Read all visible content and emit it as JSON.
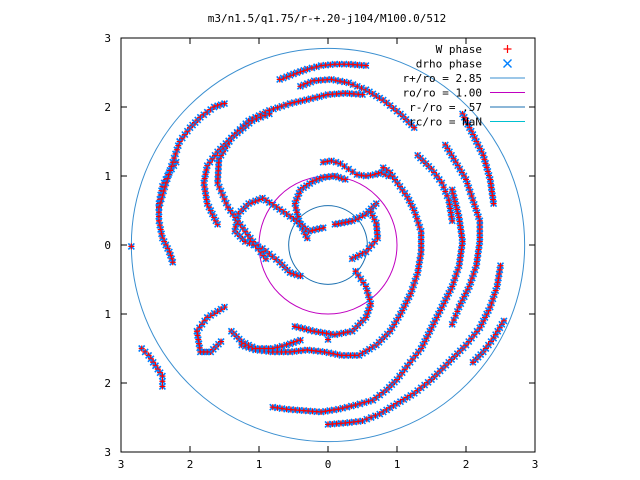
{
  "chart_data": {
    "type": "scatter",
    "title": "m3/n1.5/q1.75/r-+.20-j104/M100.0/512",
    "xlabel": "",
    "ylabel": "",
    "xlim": [
      -3,
      3
    ],
    "ylim": [
      -3,
      3
    ],
    "x_ticks": [
      "3",
      "2",
      "1",
      "0",
      "1",
      "2",
      "3"
    ],
    "y_ticks": [
      "3",
      "2",
      "1",
      "0",
      "1",
      "2",
      "3"
    ],
    "x_tick_values": [
      -3,
      -2,
      -1,
      0,
      1,
      2,
      3
    ],
    "y_tick_values": [
      3,
      2,
      1,
      0,
      -1,
      -2,
      -3
    ],
    "grid": false,
    "legend_position": "top-right",
    "colors": {
      "w_phase": "#ff0000",
      "drho_phase": "#0080ff",
      "circle_r_plus": "#3a8fd0",
      "circle_ro": "#c000c0",
      "circle_r_minus": "#1a6fb0",
      "circle_rc": "#00c0d0"
    },
    "legend": [
      {
        "label": "W phase",
        "marker": "plus",
        "color": "#ff0000"
      },
      {
        "label": "drho phase",
        "marker": "cross",
        "color": "#0080ff"
      },
      {
        "label": "r+/ro = 2.85",
        "marker": "line",
        "color": "#3a8fd0"
      },
      {
        "label": "ro/ro = 1.00",
        "marker": "line",
        "color": "#c000c0"
      },
      {
        "label": "r-/ro = .57",
        "marker": "line",
        "color": "#1a6fb0"
      },
      {
        "label": "rc/ro = NaN",
        "marker": "line",
        "color": "#00c0d0"
      }
    ],
    "circles": [
      {
        "name": "r+/ro",
        "radius": 2.85
      },
      {
        "name": "ro/ro",
        "radius": 1.0
      },
      {
        "name": "r-/ro",
        "radius": 0.57
      }
    ],
    "series": [
      {
        "name": "W phase",
        "marker": "plus",
        "arms": [
          {
            "points": [
              [
                -0.07,
                1.2
              ],
              [
                0.05,
                1.22
              ],
              [
                0.18,
                1.18
              ],
              [
                0.3,
                1.1
              ],
              [
                0.42,
                1.02
              ],
              [
                0.55,
                1.0
              ],
              [
                0.68,
                1.02
              ],
              [
                0.78,
                1.05
              ],
              [
                0.88,
                1.0
              ]
            ]
          },
          {
            "points": [
              [
                -0.3,
                0.1
              ],
              [
                -0.42,
                0.35
              ],
              [
                -0.48,
                0.6
              ],
              [
                -0.4,
                0.8
              ],
              [
                -0.22,
                0.92
              ],
              [
                -0.07,
                0.98
              ],
              [
                0.1,
                1.0
              ],
              [
                0.25,
                0.95
              ]
            ]
          },
          {
            "points": [
              [
                -0.07,
                0.25
              ],
              [
                -0.28,
                0.2
              ],
              [
                -0.5,
                0.38
              ],
              [
                -0.75,
                0.55
              ],
              [
                -0.95,
                0.68
              ],
              [
                -1.15,
                0.6
              ],
              [
                -1.3,
                0.45
              ],
              [
                -1.35,
                0.2
              ],
              [
                -1.2,
                0.05
              ],
              [
                -0.95,
                -0.05
              ],
              [
                -0.7,
                -0.25
              ],
              [
                -0.55,
                -0.4
              ],
              [
                -0.4,
                -0.45
              ]
            ]
          },
          {
            "points": [
              [
                0.7,
                0.6
              ],
              [
                0.55,
                0.45
              ],
              [
                0.35,
                0.35
              ],
              [
                0.2,
                0.32
              ],
              [
                0.1,
                0.3
              ]
            ]
          },
          {
            "points": [
              [
                0.35,
                -0.2
              ],
              [
                0.55,
                -0.1
              ],
              [
                0.72,
                0.1
              ],
              [
                0.7,
                0.32
              ],
              [
                0.62,
                0.48
              ]
            ]
          },
          {
            "points": [
              [
                -0.48,
                -1.18
              ],
              [
                -0.2,
                -1.25
              ],
              [
                0.1,
                -1.3
              ],
              [
                0.35,
                -1.25
              ],
              [
                0.55,
                -1.05
              ],
              [
                0.62,
                -0.85
              ],
              [
                0.55,
                -0.6
              ],
              [
                0.4,
                -0.38
              ]
            ]
          },
          {
            "points": [
              [
                -0.9,
                -0.2
              ],
              [
                -1.2,
                0.2
              ],
              [
                -1.45,
                0.55
              ],
              [
                -1.6,
                0.9
              ],
              [
                -1.58,
                1.25
              ],
              [
                -1.4,
                1.55
              ],
              [
                -1.15,
                1.8
              ],
              [
                -0.85,
                1.95
              ],
              [
                -0.55,
                2.05
              ],
              [
                -0.25,
                2.12
              ],
              [
                0.0,
                2.18
              ],
              [
                0.25,
                2.2
              ],
              [
                0.5,
                2.18
              ]
            ]
          },
          {
            "points": [
              [
                -1.25,
                -1.45
              ],
              [
                -1.05,
                -1.52
              ],
              [
                -0.8,
                -1.55
              ],
              [
                -0.55,
                -1.55
              ],
              [
                -0.3,
                -1.52
              ],
              [
                -0.05,
                -1.55
              ],
              [
                0.2,
                -1.6
              ],
              [
                0.45,
                -1.6
              ],
              [
                0.7,
                -1.45
              ],
              [
                0.9,
                -1.25
              ],
              [
                1.05,
                -1.0
              ],
              [
                1.2,
                -0.7
              ],
              [
                1.3,
                -0.4
              ],
              [
                1.35,
                -0.1
              ],
              [
                1.35,
                0.2
              ],
              [
                1.25,
                0.5
              ],
              [
                1.15,
                0.7
              ],
              [
                0.9,
                1.05
              ],
              [
                0.8,
                1.12
              ]
            ]
          },
          {
            "points": [
              [
                -1.5,
                -0.9
              ],
              [
                -1.75,
                -1.05
              ],
              [
                -1.9,
                -1.25
              ],
              [
                -1.85,
                -1.55
              ],
              [
                -1.7,
                -1.55
              ],
              [
                -1.55,
                -1.4
              ]
            ]
          },
          {
            "points": [
              [
                -1.6,
                0.3
              ],
              [
                -1.75,
                0.6
              ],
              [
                -1.8,
                0.9
              ],
              [
                -1.75,
                1.15
              ],
              [
                -1.6,
                1.35
              ],
              [
                -1.4,
                1.55
              ],
              [
                -1.1,
                1.8
              ],
              [
                -0.85,
                1.9
              ]
            ]
          },
          {
            "points": [
              [
                -2.2,
                1.2
              ],
              [
                -2.3,
                1.05
              ],
              [
                -2.4,
                0.85
              ],
              [
                -2.45,
                0.6
              ],
              [
                -2.45,
                0.35
              ],
              [
                -2.4,
                0.1
              ],
              [
                -2.3,
                -0.1
              ],
              [
                -2.25,
                -0.25
              ]
            ]
          },
          {
            "points": [
              [
                -2.45,
                0.55
              ],
              [
                -2.35,
                0.9
              ],
              [
                -2.25,
                1.2
              ],
              [
                -2.15,
                1.5
              ],
              [
                -2.0,
                1.7
              ],
              [
                -1.85,
                1.85
              ],
              [
                -1.65,
                2.0
              ],
              [
                -1.5,
                2.05
              ]
            ]
          },
          {
            "points": [
              [
                -2.85,
                -0.02
              ]
            ]
          },
          {
            "points": [
              [
                -2.7,
                -1.5
              ],
              [
                -2.6,
                -1.6
              ],
              [
                -2.5,
                -1.75
              ],
              [
                -2.4,
                -1.9
              ],
              [
                -2.4,
                -2.05
              ]
            ]
          },
          {
            "points": [
              [
                -1.4,
                -1.25
              ],
              [
                -1.25,
                -1.4
              ],
              [
                -1.05,
                -1.5
              ],
              [
                -0.8,
                -1.5
              ],
              [
                -0.6,
                -1.45
              ],
              [
                -0.4,
                -1.38
              ]
            ]
          },
          {
            "points": [
              [
                -0.8,
                -2.35
              ],
              [
                -0.6,
                -2.38
              ],
              [
                -0.35,
                -2.4
              ],
              [
                -0.1,
                -2.42
              ],
              [
                0.15,
                -2.38
              ],
              [
                0.4,
                -2.32
              ],
              [
                0.65,
                -2.25
              ],
              [
                0.85,
                -2.1
              ],
              [
                1.0,
                -1.95
              ],
              [
                1.15,
                -1.75
              ],
              [
                1.35,
                -1.5
              ],
              [
                1.5,
                -1.2
              ],
              [
                1.65,
                -0.9
              ],
              [
                1.8,
                -0.6
              ],
              [
                1.9,
                -0.3
              ],
              [
                1.95,
                0.05
              ],
              [
                1.9,
                0.4
              ],
              [
                1.8,
                0.8
              ]
            ]
          },
          {
            "points": [
              [
                0.0,
                -2.6
              ],
              [
                0.25,
                -2.58
              ],
              [
                0.5,
                -2.55
              ],
              [
                0.75,
                -2.45
              ],
              [
                1.0,
                -2.3
              ],
              [
                1.25,
                -2.15
              ],
              [
                1.5,
                -1.95
              ],
              [
                1.75,
                -1.7
              ],
              [
                2.0,
                -1.45
              ],
              [
                2.2,
                -1.2
              ],
              [
                2.35,
                -0.9
              ],
              [
                2.45,
                -0.6
              ],
              [
                2.5,
                -0.3
              ]
            ]
          },
          {
            "points": [
              [
                1.3,
                1.3
              ],
              [
                1.5,
                1.1
              ],
              [
                1.65,
                0.9
              ],
              [
                1.75,
                0.65
              ],
              [
                1.8,
                0.35
              ]
            ]
          },
          {
            "points": [
              [
                1.7,
                1.45
              ],
              [
                1.85,
                1.2
              ],
              [
                2.0,
                0.95
              ],
              [
                2.1,
                0.65
              ],
              [
                2.2,
                0.35
              ],
              [
                2.2,
                0.05
              ],
              [
                2.15,
                -0.3
              ],
              [
                2.05,
                -0.6
              ],
              [
                1.9,
                -0.9
              ],
              [
                1.8,
                -1.15
              ]
            ]
          },
          {
            "points": [
              [
                -0.4,
                2.3
              ],
              [
                -0.2,
                2.38
              ],
              [
                0.05,
                2.4
              ],
              [
                0.3,
                2.35
              ],
              [
                0.55,
                2.25
              ],
              [
                0.8,
                2.1
              ],
              [
                1.05,
                1.9
              ],
              [
                1.25,
                1.7
              ]
            ]
          },
          {
            "points": [
              [
                0.55,
                2.6
              ],
              [
                0.3,
                2.62
              ],
              [
                0.1,
                2.62
              ],
              [
                -0.1,
                2.6
              ],
              [
                -0.3,
                2.55
              ],
              [
                -0.5,
                2.48
              ],
              [
                -0.7,
                2.4
              ]
            ]
          },
          {
            "points": [
              [
                1.95,
                1.9
              ],
              [
                2.1,
                1.6
              ],
              [
                2.25,
                1.3
              ],
              [
                2.35,
                0.95
              ],
              [
                2.4,
                0.6
              ]
            ]
          },
          {
            "points": [
              [
                2.55,
                -1.1
              ],
              [
                2.4,
                -1.35
              ],
              [
                2.25,
                -1.55
              ],
              [
                2.1,
                -1.7
              ]
            ]
          },
          {
            "points": [
              [
                0.0,
                -1.37
              ]
            ]
          }
        ]
      },
      {
        "name": "drho phase",
        "marker": "cross",
        "arms": []
      }
    ]
  }
}
